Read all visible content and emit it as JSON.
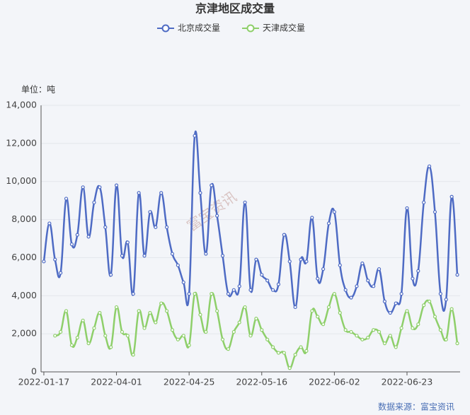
{
  "chart_data": {
    "type": "line",
    "title": "京津地区成交量",
    "unit_label": "单位：吨",
    "source": "数据来源：富宝资讯",
    "watermark": "富宝资讯",
    "categories": [
      "2022-01-17",
      null,
      null,
      null,
      null,
      null,
      null,
      null,
      null,
      null,
      null,
      null,
      null,
      "2022-04-01",
      null,
      null,
      null,
      null,
      null,
      null,
      null,
      null,
      null,
      null,
      null,
      null,
      "2022-04-25",
      null,
      null,
      null,
      null,
      null,
      null,
      null,
      null,
      null,
      null,
      null,
      null,
      "2022-05-16",
      null,
      null,
      null,
      null,
      null,
      null,
      null,
      null,
      null,
      null,
      null,
      null,
      "2022-06-02",
      null,
      null,
      null,
      null,
      null,
      null,
      null,
      null,
      null,
      null,
      null,
      null,
      "2022-06-23",
      null,
      null,
      null,
      null,
      null,
      null,
      null,
      null,
      null
    ],
    "series": [
      {
        "name": "北京成交量",
        "color": "#4e6bc4",
        "values": [
          5800,
          7800,
          5900,
          5200,
          9100,
          6700,
          7200,
          9700,
          7100,
          8900,
          9700,
          7600,
          5100,
          9800,
          6100,
          6800,
          4100,
          9400,
          6100,
          8400,
          7600,
          9400,
          7600,
          6200,
          5600,
          4700,
          4100,
          12400,
          9400,
          6200,
          9800,
          8200,
          6100,
          4100,
          4300,
          4500,
          8900,
          4300,
          5900,
          5100,
          4800,
          4300,
          4600,
          7200,
          5800,
          3400,
          5900,
          5800,
          8100,
          4900,
          5400,
          7800,
          8400,
          5600,
          4300,
          3900,
          4500,
          5700,
          4800,
          4500,
          5400,
          3700,
          3100,
          3600,
          4100,
          8600,
          4900,
          5300,
          8900,
          10800,
          8400,
          4100,
          3800,
          9200,
          5100
        ]
      },
      {
        "name": "天津成交量",
        "color": "#8ecf6a",
        "values": [
          null,
          null,
          1900,
          2100,
          3200,
          1400,
          1800,
          2700,
          1500,
          2300,
          3100,
          1900,
          1300,
          3400,
          2100,
          1900,
          900,
          3200,
          2300,
          3100,
          2600,
          3600,
          3200,
          2200,
          1700,
          1900,
          1400,
          4100,
          3000,
          2100,
          4100,
          3200,
          1700,
          1200,
          2100,
          2600,
          3400,
          1900,
          2800,
          2200,
          1700,
          1300,
          1000,
          1000,
          200,
          900,
          1300,
          1100,
          3200,
          2900,
          2500,
          3400,
          4100,
          3100,
          2200,
          2100,
          1900,
          1700,
          1800,
          2200,
          2100,
          1500,
          1900,
          1300,
          2300,
          3200,
          2300,
          2500,
          3500,
          3700,
          2900,
          2200,
          1700,
          3300,
          1500
        ]
      }
    ],
    "ylim": [
      0,
      14000
    ],
    "yticks": [
      0,
      {
        "value": 2000,
        "label": "2,000"
      },
      {
        "value": 4000,
        "label": "4,000"
      },
      {
        "value": 6000,
        "label": "6,000"
      },
      {
        "value": 8000,
        "label": "8,000"
      },
      {
        "value": 10000,
        "label": "10,000"
      },
      {
        "value": 12000,
        "label": "12,000"
      },
      {
        "value": 14000,
        "label": "14,000"
      }
    ],
    "grid": true
  }
}
